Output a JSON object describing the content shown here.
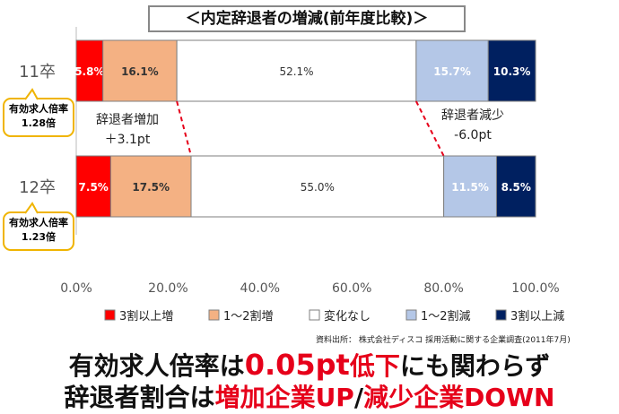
{
  "title": "＜内定辞退者の増減(前年度比較)＞",
  "source": "資料出所： 株式会社ディスコ 採用活動に関する企業調査(2011年7月)",
  "headline": {
    "line1": [
      "有効求人倍率は",
      "0.05pt",
      "低下",
      "にも関わらず"
    ],
    "line2": [
      "辞退者割合は",
      "増加企業UP",
      "/",
      "減少企業DOWN"
    ]
  },
  "annotations": {
    "increase": {
      "line1": "辞退者増加",
      "line2": "＋3.1pt"
    },
    "decrease": {
      "line1": "辞退者減少",
      "line2": "-6.0pt"
    }
  },
  "callouts": [
    {
      "row": "11卒",
      "line1": "有効求人倍率",
      "line2": "1.28倍"
    },
    {
      "row": "12卒",
      "line1": "有効求人倍率",
      "line2": "1.23倍"
    }
  ],
  "chart_data": {
    "type": "bar",
    "orientation": "horizontal",
    "stacked": "percent",
    "categories": [
      "11卒",
      "12卒"
    ],
    "series": [
      {
        "name": "3割以上増",
        "color": "#ff0000",
        "values": [
          5.8,
          7.5
        ],
        "labels": [
          "5.8%",
          "7.5%"
        ]
      },
      {
        "name": "1〜2割増",
        "color": "#f4b183",
        "values": [
          16.1,
          17.5
        ],
        "labels": [
          "16.1%",
          "17.5%"
        ]
      },
      {
        "name": "変化なし",
        "color": "#ffffff",
        "values": [
          52.1,
          55.0
        ],
        "labels": [
          "52.1%",
          "55.0%"
        ]
      },
      {
        "name": "1〜2割減",
        "color": "#b4c7e7",
        "values": [
          15.7,
          11.5
        ],
        "labels": [
          "15.7%",
          "11.5%"
        ]
      },
      {
        "name": "3割以上減",
        "color": "#002060",
        "values": [
          10.3,
          8.5
        ],
        "labels": [
          "10.3%",
          "8.5%"
        ]
      }
    ],
    "xlim": [
      0,
      100
    ],
    "xticks": [
      "0.0%",
      "20.0%",
      "40.0%",
      "60.0%",
      "80.0%",
      "100.0%"
    ],
    "legend_position": "bottom",
    "grid": false
  }
}
